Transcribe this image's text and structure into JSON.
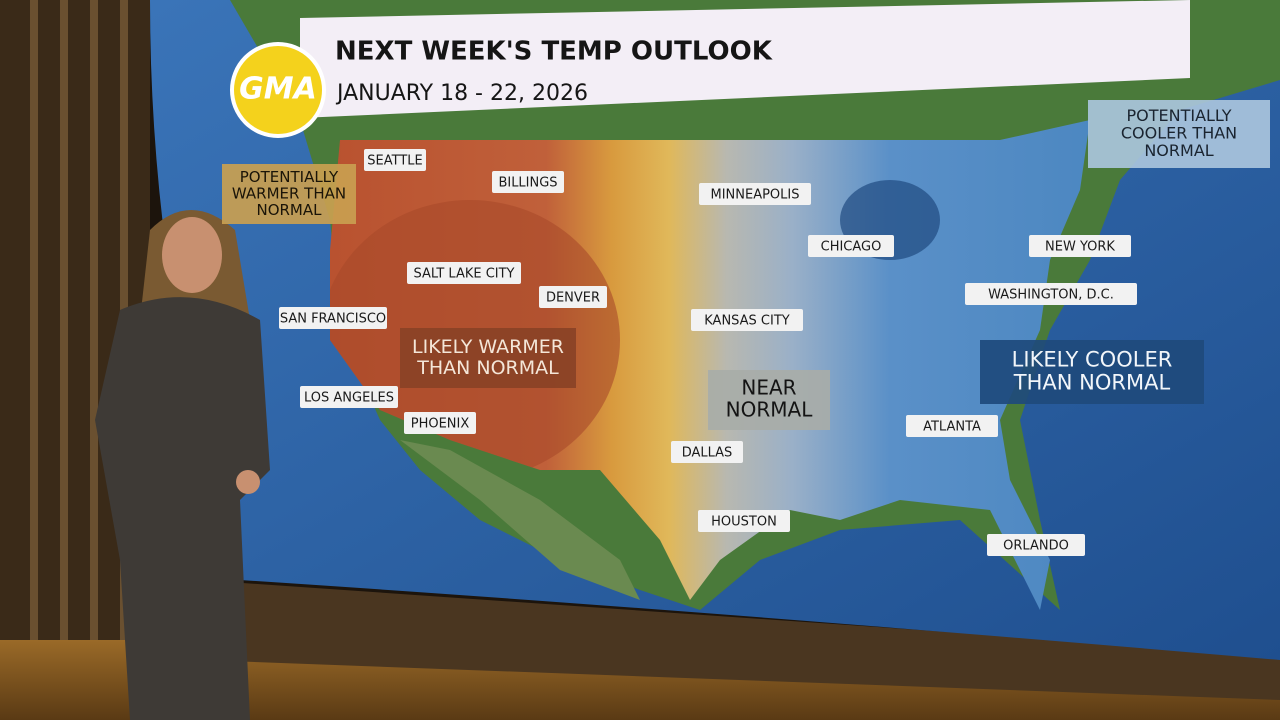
{
  "logo": "GMA",
  "header": {
    "title": "NEXT WEEK'S TEMP OUTLOOK",
    "subtitle": "JANUARY 18 - 22, 2026"
  },
  "regions": [
    {
      "lines": [
        "POTENTIALLY",
        "WARMER THAN",
        "NORMAL"
      ]
    },
    {
      "lines": [
        "POTENTIALLY",
        "COOLER THAN",
        "NORMAL"
      ]
    },
    {
      "lines": [
        "LIKELY WARMER",
        "THAN NORMAL"
      ]
    },
    {
      "lines": [
        "NEAR",
        "NORMAL"
      ]
    },
    {
      "lines": [
        "LIKELY COOLER",
        "THAN NORMAL"
      ]
    }
  ],
  "cities": [
    "SEATTLE",
    "BILLINGS",
    "MINNEAPOLIS",
    "CHICAGO",
    "NEW YORK",
    "SALT LAKE CITY",
    "DENVER",
    "WASHINGTON, D.C.",
    "SAN FRANCISCO",
    "KANSAS CITY",
    "LOS ANGELES",
    "PHOENIX",
    "ATLANTA",
    "DALLAS",
    "HOUSTON",
    "ORLANDO"
  ]
}
